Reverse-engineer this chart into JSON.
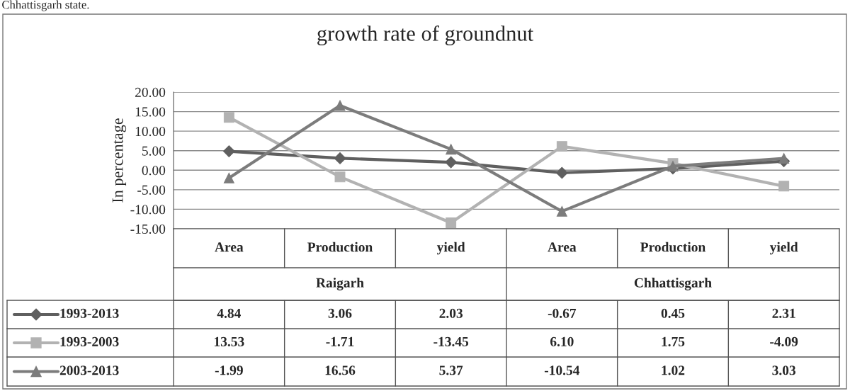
{
  "chart_data": {
    "type": "line",
    "title": "growth rate of groundnut",
    "ylabel": "In percentage",
    "categories": [
      "Area",
      "Production",
      "yield",
      "Area",
      "Production",
      "yield"
    ],
    "annotations": [
      "Chhattisgarh state.",
      "Raigarh",
      "Chhattisgarh"
    ],
    "series": [
      {
        "name": "1993-2013",
        "color": "#5f5f5f",
        "marker": "diamond",
        "values": [
          4.84,
          3.06,
          2.03,
          -0.67,
          0.45,
          2.31
        ],
        "value_labels": [
          "4.84",
          "3.06",
          "2.03",
          "-0.67",
          "0.45",
          "2.31"
        ]
      },
      {
        "name": "1993-2003",
        "color": "#b2b2b2",
        "marker": "square",
        "values": [
          13.53,
          -1.71,
          -13.45,
          6.1,
          1.75,
          -4.09
        ],
        "value_labels": [
          "13.53",
          "-1.71",
          "-13.45",
          "6.10",
          "1.75",
          "-4.09"
        ]
      },
      {
        "name": "2003-2013",
        "color": "#7c7c7c",
        "marker": "triangle",
        "values": [
          -1.99,
          16.56,
          5.37,
          -10.54,
          1.02,
          3.03
        ],
        "value_labels": [
          "-1.99",
          "16.56",
          "5.37",
          "-10.54",
          "1.02",
          "3.03"
        ]
      }
    ],
    "ylim": [
      -15,
      20
    ],
    "yticks": [
      {
        "value": -15,
        "label": "-15.00"
      },
      {
        "value": -10,
        "label": "-10.00"
      },
      {
        "value": -5,
        "label": "-5.00"
      },
      {
        "value": 0,
        "label": "0.00"
      },
      {
        "value": 5,
        "label": "5.00"
      },
      {
        "value": 10,
        "label": "10.00"
      },
      {
        "value": 15,
        "label": "15.00"
      },
      {
        "value": 20,
        "label": "20.00"
      }
    ],
    "grid": "y",
    "legend": "bottom",
    "line_style": "solid"
  }
}
